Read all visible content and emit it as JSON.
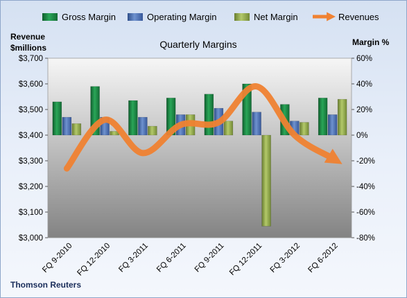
{
  "chart_data": {
    "type": "bar",
    "title": "Quarterly Margins",
    "source": "Thomson Reuters",
    "categories": [
      "FQ 9-2010",
      "FQ 12-2010",
      "FQ 3-2011",
      "FQ 6-2011",
      "FQ 9-2011",
      "FQ 12-2011",
      "FQ 3-2012",
      "FQ 6-2012"
    ],
    "left_axis": {
      "label_line1": "Revenue",
      "label_line2": "$millions",
      "range": [
        3000,
        3700
      ],
      "ticks": [
        "$3,000",
        "$3,100",
        "$3,200",
        "$3,300",
        "$3,400",
        "$3,500",
        "$3,600",
        "$3,700"
      ]
    },
    "right_axis": {
      "label": "Margin %",
      "range": [
        -80,
        60
      ],
      "ticks": [
        "-80%",
        "-60%",
        "-40%",
        "-20%",
        "0%",
        "20%",
        "40%",
        "60%"
      ]
    },
    "legend_position": "top",
    "grid": false,
    "series": [
      {
        "name": "Gross Margin",
        "type": "bar",
        "axis": "right",
        "color": "#1e8a48",
        "values": [
          26,
          38,
          27,
          29,
          32,
          40,
          24,
          29
        ]
      },
      {
        "name": "Operating Margin",
        "type": "bar",
        "axis": "right",
        "color": "#4f74b3",
        "values": [
          14,
          14,
          14,
          16,
          21,
          18,
          11,
          16
        ]
      },
      {
        "name": "Net Margin",
        "type": "bar",
        "axis": "right",
        "color": "#94ad4c",
        "values": [
          9,
          3,
          7,
          16,
          11,
          -71,
          10,
          28
        ]
      },
      {
        "name": "Revenues",
        "type": "line",
        "axis": "left",
        "color": "#f08232",
        "values": [
          3270,
          3460,
          3330,
          3440,
          3450,
          3590,
          3400,
          3310
        ]
      }
    ]
  }
}
